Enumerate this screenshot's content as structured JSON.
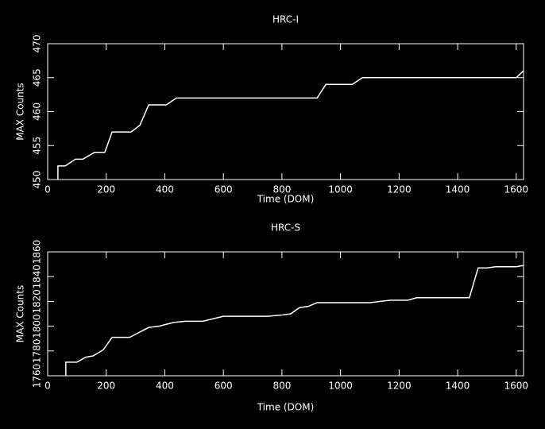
{
  "chart_data": [
    {
      "type": "line",
      "title": "HRC-I",
      "x_label": "Time (DOM)",
      "y_label": "MAX Counts",
      "x": [
        35,
        35,
        60,
        95,
        120,
        160,
        195,
        220,
        285,
        315,
        345,
        405,
        440,
        920,
        950,
        1040,
        1075,
        1600,
        1625
      ],
      "series": [
        {
          "name": "HRC-I",
          "color": "#ffffff",
          "values": [
            450,
            452,
            452,
            453,
            453,
            454,
            454,
            457,
            457,
            458,
            461,
            461,
            462,
            462,
            464,
            464,
            465,
            465,
            466
          ]
        }
      ],
      "xlim": [
        0,
        1625
      ],
      "xticks": [
        0,
        200,
        400,
        600,
        800,
        1000,
        1200,
        1400,
        1600
      ],
      "ylim": [
        450,
        470
      ],
      "yticks": [
        450,
        455,
        460,
        465,
        470
      ]
    },
    {
      "type": "line",
      "title": "HRC-S",
      "x_label": "Time (DOM)",
      "y_label": "MAX Counts",
      "x": [
        62,
        62,
        100,
        130,
        155,
        190,
        220,
        280,
        345,
        380,
        430,
        470,
        530,
        600,
        620,
        750,
        800,
        830,
        860,
        890,
        920,
        1100,
        1170,
        1230,
        1260,
        1440,
        1470,
        1500,
        1530,
        1600,
        1625
      ],
      "series": [
        {
          "name": "HRC-S",
          "color": "#ffffff",
          "values": [
            1760,
            1771,
            1771,
            1775,
            1776,
            1781,
            1791,
            1791,
            1799,
            1800,
            1803,
            1804,
            1804,
            1808,
            1808,
            1808,
            1809,
            1810,
            1815,
            1816,
            1819,
            1819,
            1821,
            1821,
            1823,
            1823,
            1847,
            1847,
            1848,
            1848,
            1849
          ]
        }
      ],
      "xlim": [
        0,
        1625
      ],
      "xticks": [
        0,
        200,
        400,
        600,
        800,
        1000,
        1200,
        1400,
        1600
      ],
      "ylim": [
        1760,
        1860
      ],
      "yticks": [
        1760,
        1780,
        1800,
        1820,
        1840,
        1860
      ]
    }
  ]
}
